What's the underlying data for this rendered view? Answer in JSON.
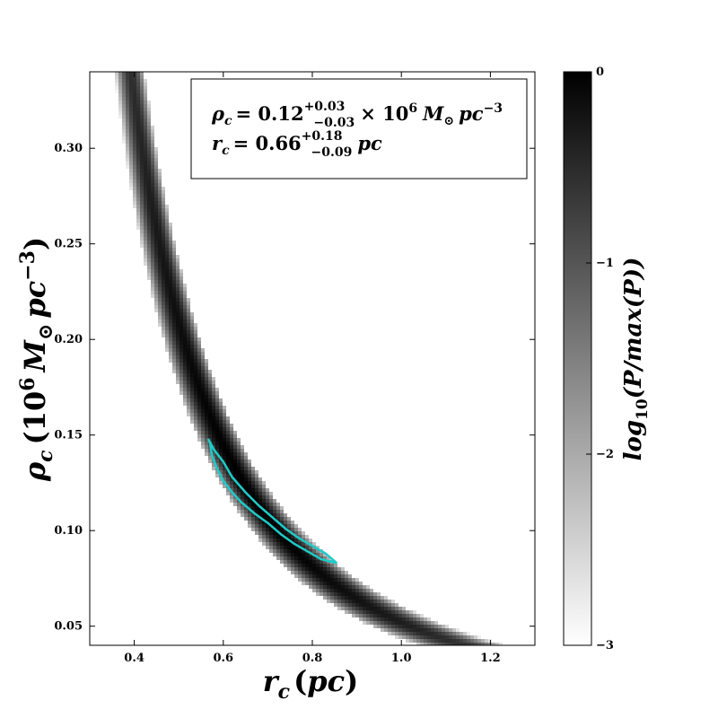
{
  "chart_data": {
    "type": "heatmap",
    "xlabel": "r_c (pc)",
    "ylabel": "ρ_c (10^6 M_⊙ pc^-3)",
    "xlim": [
      0.3,
      1.3
    ],
    "ylim": [
      0.04,
      0.34
    ],
    "x_ticks": [
      0.4,
      0.6,
      0.8,
      1.0,
      1.2
    ],
    "y_ticks": [
      0.05,
      0.1,
      0.15,
      0.2,
      0.25,
      0.3
    ],
    "x_tick_labels": [
      "0.4",
      "0.6",
      "0.8",
      "1.0",
      "1.2"
    ],
    "y_tick_labels": [
      "0.05",
      "0.10",
      "0.15",
      "0.20",
      "0.25",
      "0.30"
    ],
    "annotation": {
      "line1": {
        "symbol": "ρ",
        "sub": "c",
        "eq": "= 0.12",
        "sup": "+0.03",
        "inf": "−0.03",
        "tail": "× 10",
        "tail_sup": "6",
        "unit": "M",
        "unit_sub": "⊙",
        "unit2": "pc",
        "unit2_sup": "−3"
      },
      "line2": {
        "symbol": "r",
        "sub": "c",
        "eq": "= 0.66",
        "sup": "+0.18",
        "inf": "−0.09",
        "unit": "pc"
      }
    },
    "colorbar": {
      "label": "log10(P/max(P))",
      "label_main": "log",
      "label_sub": "10",
      "label_tail": "(P/max(P))",
      "ticks": [
        0,
        -1,
        -2,
        -3
      ],
      "tick_labels": [
        "0",
        "−1",
        "−2",
        "−3"
      ],
      "range": [
        -3,
        0
      ]
    },
    "ridge": {
      "constant_rho_rc_squared": 0.052,
      "peak_rc": 0.66,
      "x_range": [
        0.36,
        1.3
      ]
    },
    "contour": {
      "color": "#1ecbc8",
      "upper_edge": [
        [
          0.566,
          0.148
        ],
        [
          0.58,
          0.142
        ],
        [
          0.6,
          0.136
        ],
        [
          0.62,
          0.128
        ],
        [
          0.65,
          0.12
        ],
        [
          0.68,
          0.113
        ],
        [
          0.71,
          0.107
        ],
        [
          0.74,
          0.101
        ],
        [
          0.77,
          0.096
        ],
        [
          0.8,
          0.092
        ],
        [
          0.83,
          0.088
        ],
        [
          0.855,
          0.083
        ]
      ],
      "lower_edge": [
        [
          0.855,
          0.083
        ],
        [
          0.82,
          0.085
        ],
        [
          0.79,
          0.089
        ],
        [
          0.76,
          0.093
        ],
        [
          0.73,
          0.098
        ],
        [
          0.7,
          0.104
        ],
        [
          0.67,
          0.109
        ],
        [
          0.64,
          0.115
        ],
        [
          0.62,
          0.12
        ],
        [
          0.6,
          0.126
        ],
        [
          0.585,
          0.133
        ],
        [
          0.575,
          0.139
        ],
        [
          0.57,
          0.146
        ]
      ]
    }
  }
}
